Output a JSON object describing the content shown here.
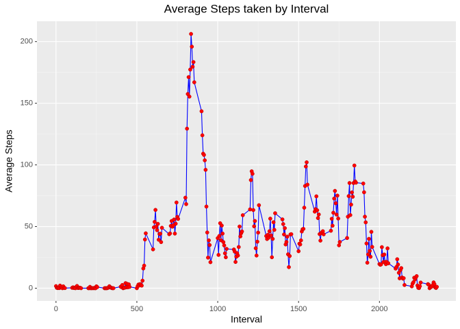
{
  "chart_data": {
    "type": "line",
    "title": "Average Steps taken by Interval",
    "x_label": "Interval",
    "y_label": "Average Steps",
    "x": [
      0,
      5,
      10,
      15,
      20,
      25,
      30,
      35,
      40,
      45,
      50,
      55,
      100,
      105,
      110,
      115,
      120,
      125,
      130,
      135,
      140,
      145,
      150,
      155,
      200,
      205,
      210,
      215,
      220,
      225,
      230,
      235,
      240,
      245,
      250,
      255,
      300,
      305,
      310,
      315,
      320,
      325,
      330,
      335,
      340,
      345,
      350,
      355,
      400,
      405,
      410,
      415,
      420,
      425,
      430,
      435,
      440,
      445,
      450,
      455,
      500,
      505,
      510,
      515,
      520,
      525,
      530,
      535,
      540,
      545,
      550,
      555,
      600,
      605,
      610,
      615,
      620,
      625,
      630,
      635,
      640,
      645,
      650,
      655,
      700,
      705,
      710,
      715,
      720,
      725,
      730,
      735,
      740,
      745,
      750,
      755,
      800,
      805,
      810,
      815,
      820,
      825,
      830,
      835,
      840,
      845,
      850,
      855,
      900,
      905,
      910,
      915,
      920,
      925,
      930,
      935,
      940,
      945,
      950,
      955,
      1000,
      1005,
      1010,
      1015,
      1020,
      1025,
      1030,
      1035,
      1040,
      1045,
      1050,
      1055,
      1100,
      1105,
      1110,
      1115,
      1120,
      1125,
      1130,
      1135,
      1140,
      1145,
      1150,
      1155,
      1200,
      1205,
      1210,
      1215,
      1220,
      1225,
      1230,
      1235,
      1240,
      1245,
      1250,
      1255,
      1300,
      1305,
      1310,
      1315,
      1320,
      1325,
      1330,
      1335,
      1340,
      1345,
      1350,
      1355,
      1400,
      1405,
      1410,
      1415,
      1420,
      1425,
      1430,
      1435,
      1440,
      1445,
      1450,
      1455,
      1500,
      1505,
      1510,
      1515,
      1520,
      1525,
      1530,
      1535,
      1540,
      1545,
      1550,
      1555,
      1600,
      1605,
      1610,
      1615,
      1620,
      1625,
      1630,
      1635,
      1640,
      1645,
      1650,
      1655,
      1700,
      1705,
      1710,
      1715,
      1720,
      1725,
      1730,
      1735,
      1740,
      1745,
      1750,
      1755,
      1800,
      1805,
      1810,
      1815,
      1820,
      1825,
      1830,
      1835,
      1840,
      1845,
      1850,
      1855,
      1900,
      1905,
      1910,
      1915,
      1920,
      1925,
      1930,
      1935,
      1940,
      1945,
      1950,
      1955,
      2000,
      2005,
      2010,
      2015,
      2020,
      2025,
      2030,
      2035,
      2040,
      2045,
      2050,
      2055,
      2100,
      2105,
      2110,
      2115,
      2120,
      2125,
      2130,
      2135,
      2140,
      2145,
      2150,
      2155,
      2200,
      2205,
      2210,
      2215,
      2220,
      2225,
      2230,
      2235,
      2240,
      2245,
      2250,
      2255,
      2300,
      2305,
      2310,
      2315,
      2320,
      2325,
      2330,
      2335,
      2340,
      2345,
      2350,
      2355
    ],
    "values": [
      1.7,
      0.3,
      0.1,
      0.2,
      0.1,
      2.1,
      0.5,
      0.9,
      0,
      1.5,
      0.3,
      0.1,
      0.3,
      0.7,
      0.2,
      0.3,
      0,
      1.1,
      1.8,
      0.2,
      0.2,
      0.4,
      0.3,
      0,
      0,
      0,
      1.1,
      0,
      0,
      0.1,
      0,
      0.2,
      0,
      0,
      1.5,
      0.9,
      0,
      0,
      0,
      0,
      0.2,
      0.6,
      1.6,
      0.6,
      0.5,
      0.1,
      0,
      0,
      1.2,
      0.9,
      2.6,
      0,
      0.3,
      0.4,
      4.1,
      0.7,
      3.5,
      0.8,
      3.1,
      1.1,
      0,
      1.6,
      3,
      2.2,
      3.3,
      3,
      2.1,
      6.1,
      16,
      18.3,
      39.5,
      44.5,
      31.5,
      49.3,
      53.8,
      63.5,
      50,
      47.1,
      52.2,
      39.3,
      44,
      44.2,
      37.4,
      49,
      43.8,
      44.4,
      50.5,
      54.5,
      49.9,
      51,
      55.7,
      44.3,
      52.3,
      69.5,
      57.8,
      56.2,
      73.4,
      68.2,
      129.4,
      157.5,
      171.2,
      155.4,
      177.3,
      206.2,
      195.9,
      179.6,
      183.4,
      167,
      143.5,
      124,
      109.1,
      108.1,
      103.7,
      96,
      66.2,
      45.2,
      24.8,
      38.8,
      35,
      21.1,
      40.6,
      27,
      42.4,
      52.7,
      38.9,
      50.8,
      44.3,
      37.4,
      34.7,
      28.3,
      25.1,
      31.9,
      31.4,
      29.7,
      21.3,
      25.5,
      28.4,
      26.5,
      33.4,
      50,
      42,
      44.6,
      46,
      59.2,
      63.9,
      87.7,
      94.8,
      92.8,
      63.4,
      50.2,
      54.5,
      32.4,
      26.5,
      37.7,
      45.1,
      67.3,
      42.3,
      39.9,
      43.3,
      41,
      46.2,
      56.4,
      42.8,
      25.1,
      40,
      53.5,
      47.3,
      60.8,
      55.8,
      52,
      43.6,
      48.7,
      35.5,
      37.5,
      41.8,
      27.5,
      17.1,
      26.1,
      43.6,
      43.8,
      30,
      36.1,
      35.5,
      38.8,
      46,
      47.8,
      48.1,
      65.3,
      82.9,
      98.7,
      102.1,
      84,
      62.1,
      64.1,
      74.5,
      63.2,
      56.9,
      59.8,
      43.9,
      38.6,
      44.7,
      45.5,
      46.2,
      43.7,
      46.6,
      56.3,
      50.7,
      61.2,
      72.7,
      78.9,
      68.9,
      59.7,
      75.1,
      56.5,
      34.8,
      37.5,
      40.7,
      58,
      74.7,
      85.3,
      59.3,
      67.8,
      77.7,
      74.2,
      85.3,
      99.5,
      86.6,
      85.6,
      84.9,
      77.8,
      58,
      53.4,
      36.3,
      20.7,
      27.4,
      40,
      30.2,
      25.5,
      45.7,
      33.5,
      19.6,
      19,
      19.3,
      33.3,
      26.8,
      21.2,
      27.3,
      21.3,
      19.5,
      21.3,
      32.3,
      20.2,
      15.9,
      17.2,
      23.5,
      19.2,
      12.5,
      8,
      14.7,
      16.3,
      8.7,
      7.8,
      8.1,
      2.6,
      1.5,
      3.7,
      4.8,
      8.5,
      7.1,
      8.7,
      9.8,
      2.2,
      0.3,
      0.1,
      1.6,
      4.6,
      3.3,
      2.8,
      0,
      0.8,
      1,
      1.6,
      2.6,
      4.7,
      3.3,
      0.6,
      0.2,
      1.1
    ],
    "color": "#0000ff",
    "marker_color": "#ff0000",
    "xlim": [
      -117.75,
      2472.75
    ],
    "xticks": [
      0,
      500,
      1000,
      1500,
      2000
    ],
    "ylim": [
      -10.3,
      216.5
    ],
    "yticks": [
      0,
      50,
      100,
      150,
      200
    ],
    "grid": true
  }
}
